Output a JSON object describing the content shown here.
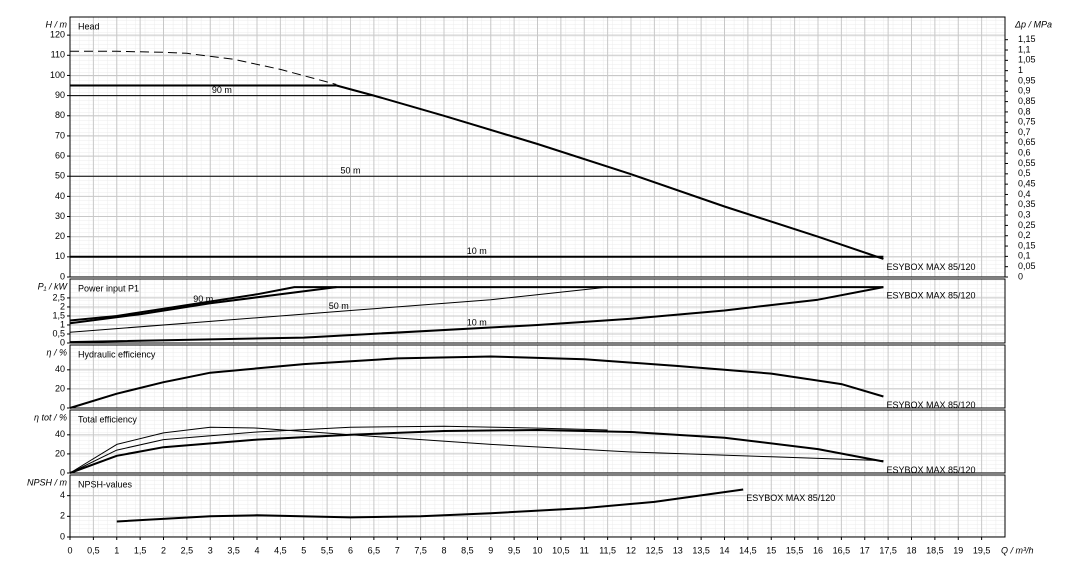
{
  "chart_data": [
    {
      "type": "line",
      "title": "Head",
      "y_label": "H / m",
      "y2_label": "Δp / MPa",
      "xlim": [
        0,
        20
      ],
      "ylim": [
        0,
        129
      ],
      "yticks": [
        0,
        10,
        20,
        30,
        40,
        50,
        60,
        70,
        80,
        90,
        100,
        110,
        120
      ],
      "y2lim": [
        0,
        1.26
      ],
      "y2ticks": [
        0,
        {
          "value": 0.05,
          "label": "0,05"
        },
        {
          "value": 0.1,
          "label": "0,1"
        },
        {
          "value": 0.15,
          "label": "0,15"
        },
        {
          "value": 0.2,
          "label": "0,2"
        },
        {
          "value": 0.25,
          "label": "0,25"
        },
        {
          "value": 0.3,
          "label": "0,3"
        },
        {
          "value": 0.35,
          "label": "0,35"
        },
        {
          "value": 0.4,
          "label": "0,4"
        },
        {
          "value": 0.45,
          "label": "0,45"
        },
        {
          "value": 0.5,
          "label": "0,5"
        },
        {
          "value": 0.55,
          "label": "0,55"
        },
        {
          "value": 0.6,
          "label": "0,6"
        },
        {
          "value": 0.65,
          "label": "0,65"
        },
        {
          "value": 0.7,
          "label": "0,7"
        },
        {
          "value": 0.75,
          "label": "0,75"
        },
        {
          "value": 0.8,
          "label": "0,8"
        },
        {
          "value": 0.85,
          "label": "0,85"
        },
        {
          "value": 0.9,
          "label": "0,9"
        },
        {
          "value": 0.95,
          "label": "0,95"
        },
        1,
        {
          "value": 1.05,
          "label": "1,05"
        },
        {
          "value": 1.1,
          "label": "1,1"
        },
        {
          "value": 1.15,
          "label": "1,15"
        }
      ],
      "grid": true,
      "series": [
        {
          "name": "ESYBOX MAX 85/120",
          "color": "#000000",
          "width": 2,
          "x": [
            5.7,
            6.5,
            8,
            10,
            12,
            14,
            16,
            17.4
          ],
          "values": [
            95,
            90,
            80,
            66,
            51,
            35,
            20,
            9
          ]
        },
        {
          "color": "#000000",
          "width": 1,
          "dashed": true,
          "x": [
            0,
            1,
            2,
            2.5,
            3.5,
            4.5,
            5.7
          ],
          "values": [
            112,
            112,
            111.5,
            111,
            108,
            103,
            95.5
          ]
        },
        {
          "color": "#000000",
          "width": 2,
          "x": [
            0,
            5.7
          ],
          "values": [
            95,
            95
          ]
        },
        {
          "name": "90 m",
          "color": "#000000",
          "width": 1,
          "x": [
            0,
            6.5
          ],
          "values": [
            90,
            90
          ]
        },
        {
          "name": "50 m",
          "color": "#000000",
          "width": 1,
          "x": [
            0,
            12
          ],
          "values": [
            50,
            50
          ]
        },
        {
          "name": "10 m",
          "color": "#000000",
          "width": 2,
          "x": [
            0,
            17.4
          ],
          "values": [
            10,
            10
          ]
        }
      ]
    },
    {
      "type": "line",
      "title": "Power input P1",
      "y_label": "P₁ / kW",
      "xlim": [
        0,
        20
      ],
      "ylim": [
        0,
        3.55
      ],
      "yticks": [
        0,
        {
          "value": 0.5,
          "label": "0,5"
        },
        1,
        {
          "value": 1.5,
          "label": "1,5"
        },
        2,
        {
          "value": 2.5,
          "label": "2,5"
        }
      ],
      "grid": true,
      "series": [
        {
          "name": "ESYBOX MAX 85/120",
          "color": "#000000",
          "width": 2,
          "x": [
            0,
            1,
            2,
            3,
            4,
            4.8,
            17.4
          ],
          "values": [
            1.25,
            1.5,
            1.9,
            2.3,
            2.7,
            3.1,
            3.1
          ]
        },
        {
          "name": "90 m",
          "color": "#000000",
          "width": 2,
          "x": [
            0,
            1.5,
            3,
            4.5,
            5.7
          ],
          "values": [
            1.1,
            1.6,
            2.2,
            2.7,
            3.1
          ]
        },
        {
          "name": "50 m",
          "color": "#000000",
          "width": 1,
          "x": [
            0,
            3,
            6,
            9,
            11.5
          ],
          "values": [
            0.6,
            1.2,
            1.8,
            2.4,
            3.1
          ]
        },
        {
          "name": "10 m",
          "color": "#000000",
          "width": 2,
          "x": [
            0,
            5,
            10,
            12,
            14,
            16,
            17.4
          ],
          "values": [
            0.05,
            0.3,
            1,
            1.35,
            1.8,
            2.4,
            3.1
          ]
        }
      ]
    },
    {
      "type": "line",
      "title": "Hydraulic efficiency",
      "y_label": "η / %",
      "xlim": [
        0,
        20
      ],
      "ylim": [
        0,
        66
      ],
      "yticks": [
        0,
        20,
        40
      ],
      "grid": true,
      "series": [
        {
          "name": "ESYBOX MAX 85/120",
          "color": "#000000",
          "width": 2,
          "x": [
            0,
            1,
            2,
            3,
            5,
            7,
            9,
            11,
            13,
            15,
            16.5,
            17.4
          ],
          "values": [
            0,
            15,
            27,
            37,
            46,
            52,
            54,
            51,
            44,
            36,
            25,
            12
          ]
        }
      ]
    },
    {
      "type": "line",
      "title": "Total efficiency",
      "y_label": "η tot / %",
      "xlim": [
        0,
        20
      ],
      "ylim": [
        0,
        66
      ],
      "yticks": [
        0,
        20,
        40
      ],
      "grid": true,
      "series": [
        {
          "name": "ESYBOX MAX 85/120",
          "color": "#000000",
          "width": 2,
          "x": [
            0,
            1,
            2,
            4,
            6,
            8,
            10,
            12,
            14,
            16,
            17.4
          ],
          "values": [
            0,
            18,
            27,
            35,
            40,
            44,
            45,
            43,
            37,
            25,
            12
          ]
        },
        {
          "color": "#000000",
          "width": 1,
          "x": [
            0,
            1,
            2,
            3,
            4,
            6,
            9,
            12,
            15,
            17.4
          ],
          "values": [
            0,
            30,
            42,
            48,
            47,
            40,
            30,
            22,
            17,
            13
          ]
        },
        {
          "color": "#000000",
          "width": 1,
          "x": [
            0,
            1,
            2,
            4,
            6,
            8,
            10,
            11.5
          ],
          "values": [
            0,
            24,
            35,
            43,
            48,
            49,
            47,
            45
          ]
        }
      ]
    },
    {
      "type": "line",
      "title": "NPSH-values",
      "y_label": "NPSH / m",
      "x_label": "Q / m³/h",
      "xlim": [
        0,
        20
      ],
      "ylim": [
        0,
        6
      ],
      "yticks": [
        0,
        2,
        4
      ],
      "grid": true,
      "xticks": [
        0,
        {
          "value": 0.5,
          "label": "0,5"
        },
        1,
        {
          "value": 1.5,
          "label": "1,5"
        },
        2,
        {
          "value": 2.5,
          "label": "2,5"
        },
        3,
        {
          "value": 3.5,
          "label": "3,5"
        },
        4,
        {
          "value": 4.5,
          "label": "4,5"
        },
        5,
        {
          "value": 5.5,
          "label": "5,5"
        },
        6,
        {
          "value": 6.5,
          "label": "6,5"
        },
        7,
        {
          "value": 7.5,
          "label": "7,5"
        },
        8,
        {
          "value": 8.5,
          "label": "8,5"
        },
        9,
        {
          "value": 9.5,
          "label": "9,5"
        },
        10,
        {
          "value": 10.5,
          "label": "10,5"
        },
        11,
        {
          "value": 11.5,
          "label": "11,5"
        },
        12,
        {
          "value": 12.5,
          "label": "12,5"
        },
        13,
        {
          "value": 13.5,
          "label": "13,5"
        },
        14,
        {
          "value": 14.5,
          "label": "14,5"
        },
        15,
        {
          "value": 15.5,
          "label": "15,5"
        },
        16,
        {
          "value": 16.5,
          "label": "16,5"
        },
        17,
        {
          "value": 17.5,
          "label": "17,5"
        },
        18,
        {
          "value": 18.5,
          "label": "18,5"
        },
        19,
        {
          "value": 19.5,
          "label": "19,5"
        }
      ],
      "series": [
        {
          "name": "ESYBOX MAX 85/120",
          "color": "#000000",
          "width": 2,
          "x": [
            1,
            3,
            4,
            6,
            7.5,
            9,
            11,
            12.5,
            14.4
          ],
          "values": [
            1.5,
            2,
            2.1,
            1.9,
            2,
            2.3,
            2.8,
            3.4,
            4.6
          ]
        }
      ]
    }
  ]
}
